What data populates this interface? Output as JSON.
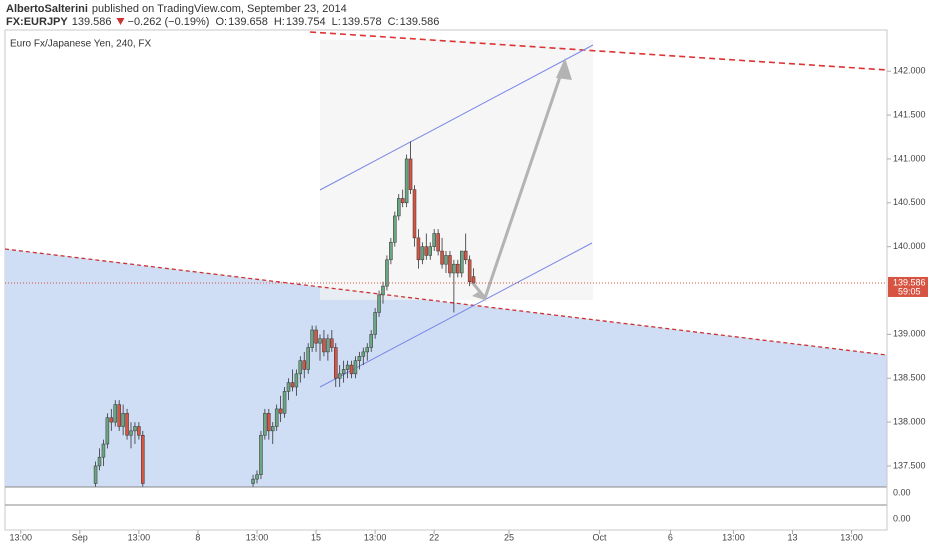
{
  "header": {
    "author": "AlbertoSalterini",
    "published": "published on TradingView.com, September 23, 2014",
    "symbol": "FX:EURJPY",
    "price": "139.586",
    "change": "−0.262 (−0.19%)",
    "ohlc": [
      {
        "label": "O:",
        "value": "139.658"
      },
      {
        "label": "H:",
        "value": "139.754"
      },
      {
        "label": "L:",
        "value": "139.578"
      },
      {
        "label": "C:",
        "value": "139.586"
      }
    ]
  },
  "chart_data": {
    "type": "candlestick",
    "subtitle": "Euro Fx/Japanese Yen, 240, FX",
    "up_color": "#6ba583",
    "down_color": "#d75442",
    "last_price": {
      "value": 139.586,
      "label": "139.586"
    },
    "countdown": "59:05",
    "indicator_panes": [
      "0.00",
      "0.00"
    ],
    "xlim": [
      -19,
      205
    ],
    "ylim": [
      137.26,
      142.47
    ],
    "xticks": [
      {
        "value": -15,
        "label": "13:00"
      },
      {
        "value": 0,
        "label": "Sep"
      },
      {
        "value": 15,
        "label": "13:00"
      },
      {
        "value": 30,
        "label": "8"
      },
      {
        "value": 45,
        "label": "13:00"
      },
      {
        "value": 60,
        "label": "15"
      },
      {
        "value": 75,
        "label": "13:00"
      },
      {
        "value": 90,
        "label": "22"
      },
      {
        "value": 109,
        "label": "25"
      },
      {
        "value": 132,
        "label": "Oct"
      },
      {
        "value": 150,
        "label": "6"
      },
      {
        "value": 166,
        "label": "13:00"
      },
      {
        "value": 181,
        "label": "13"
      },
      {
        "value": 196,
        "label": "13:00"
      }
    ],
    "yticks": [
      {
        "value": 137.5,
        "label": "137.500"
      },
      {
        "value": 138,
        "label": "138.000"
      },
      {
        "value": 138.5,
        "label": "138.500"
      },
      {
        "value": 139,
        "label": "139.000"
      },
      {
        "value": 140,
        "label": "140.000"
      },
      {
        "value": 140.5,
        "label": "140.500"
      },
      {
        "value": 141,
        "label": "141.000"
      },
      {
        "value": 141.5,
        "label": "141.500"
      },
      {
        "value": 142,
        "label": "142.000"
      }
    ],
    "x": [
      4,
      5,
      6,
      7,
      8,
      9,
      10,
      11,
      12,
      13,
      14,
      15,
      16,
      44,
      45,
      46,
      47,
      48,
      49,
      50,
      51,
      52,
      53,
      54,
      55,
      56,
      57,
      58,
      59,
      60,
      61,
      62,
      63,
      64,
      65,
      66,
      67,
      68,
      69,
      70,
      71,
      72,
      73,
      74,
      75,
      76,
      77,
      78,
      79,
      80,
      81,
      82,
      83,
      84,
      85,
      86,
      87,
      88,
      89,
      90,
      91,
      92,
      93,
      94,
      95,
      96,
      97,
      98,
      99,
      100
    ],
    "open": [
      137.3,
      137.5,
      137.6,
      137.75,
      138.05,
      138.0,
      138.2,
      137.95,
      138.1,
      137.85,
      137.9,
      137.95,
      137.85,
      137.3,
      137.35,
      137.4,
      137.85,
      138.1,
      137.9,
      137.95,
      138.15,
      138.1,
      138.35,
      138.45,
      138.4,
      138.55,
      138.7,
      138.6,
      138.85,
      139.05,
      138.9,
      138.95,
      138.8,
      138.95,
      138.85,
      138.5,
      138.55,
      138.6,
      138.65,
      138.55,
      138.7,
      138.75,
      138.8,
      138.85,
      139.0,
      139.25,
      139.45,
      139.55,
      139.85,
      140.05,
      140.35,
      140.55,
      140.5,
      141.0,
      140.65,
      140.1,
      139.85,
      140.0,
      139.9,
      140.0,
      140.15,
      139.95,
      139.8,
      139.9,
      139.7,
      139.8,
      139.7,
      139.95,
      139.85,
      139.658
    ],
    "high": [
      137.55,
      137.7,
      137.8,
      138.1,
      138.15,
      138.25,
      138.25,
      138.2,
      138.15,
      138.0,
      138.0,
      138.0,
      137.9,
      137.4,
      137.45,
      137.9,
      138.15,
      138.15,
      138.0,
      138.2,
      138.3,
      138.4,
      138.5,
      138.6,
      138.6,
      138.75,
      138.8,
      138.9,
      139.1,
      139.1,
      139.0,
      139.05,
      139.0,
      139.05,
      138.9,
      138.65,
      138.7,
      138.7,
      138.7,
      138.75,
      138.8,
      138.85,
      138.9,
      139.05,
      139.3,
      139.5,
      139.6,
      139.9,
      140.1,
      140.4,
      140.6,
      140.65,
      141.05,
      141.2,
      140.7,
      140.2,
      140.05,
      140.15,
      140.05,
      140.2,
      140.2,
      140.1,
      139.95,
      139.95,
      139.85,
      139.85,
      139.95,
      140.15,
      139.9,
      139.754
    ],
    "low": [
      137.2,
      137.45,
      137.5,
      137.7,
      137.9,
      137.95,
      137.9,
      137.85,
      137.8,
      137.7,
      137.75,
      137.8,
      137.2,
      137.25,
      137.3,
      137.35,
      137.8,
      137.8,
      137.75,
      137.9,
      138.0,
      138.05,
      138.25,
      138.35,
      138.3,
      138.45,
      138.5,
      138.55,
      138.8,
      138.8,
      138.7,
      138.75,
      138.7,
      138.8,
      138.4,
      138.4,
      138.45,
      138.5,
      138.5,
      138.5,
      138.6,
      138.65,
      138.7,
      138.8,
      138.95,
      139.2,
      139.35,
      139.5,
      139.8,
      140.0,
      140.3,
      140.45,
      140.45,
      140.6,
      140.0,
      139.75,
      139.8,
      139.85,
      139.85,
      139.95,
      139.9,
      139.75,
      139.7,
      139.65,
      139.25,
      139.65,
      139.65,
      139.8,
      139.55,
      139.578
    ],
    "close": [
      137.5,
      137.6,
      137.75,
      138.05,
      138.0,
      138.2,
      137.95,
      138.1,
      137.85,
      137.9,
      137.95,
      137.85,
      137.3,
      137.35,
      137.4,
      137.85,
      138.1,
      137.9,
      137.95,
      138.15,
      138.1,
      138.35,
      138.45,
      138.4,
      138.55,
      138.7,
      138.6,
      138.85,
      139.05,
      138.9,
      138.95,
      138.8,
      138.95,
      138.85,
      138.5,
      138.55,
      138.6,
      138.65,
      138.55,
      138.7,
      138.75,
      138.8,
      138.85,
      139.0,
      139.25,
      139.45,
      139.55,
      139.85,
      140.05,
      140.35,
      140.55,
      140.5,
      141.0,
      140.65,
      140.1,
      139.85,
      140.0,
      139.9,
      140.0,
      140.15,
      139.95,
      139.8,
      139.9,
      139.7,
      139.8,
      139.7,
      139.95,
      139.85,
      139.6,
      139.586
    ]
  }
}
